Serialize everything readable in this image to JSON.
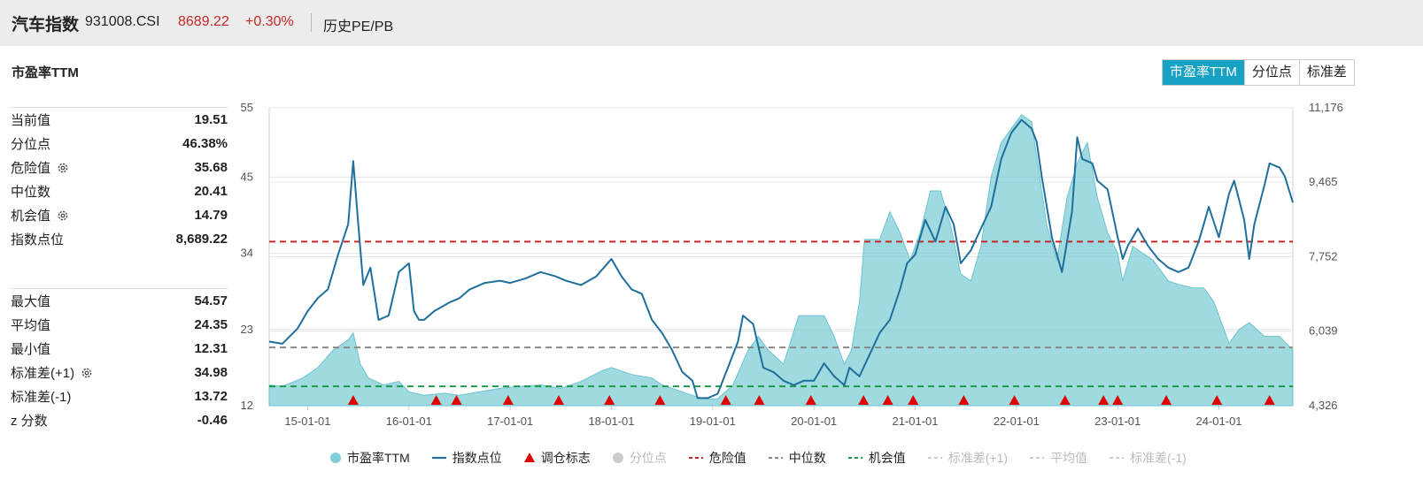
{
  "header": {
    "title": "汽车指数",
    "code": "931008.CSI",
    "price": "8689.22",
    "change": "+0.30%",
    "history_link": "历史PE/PB"
  },
  "metric_title": "市盈率TTM",
  "tabs": [
    {
      "label": "市盈率TTM",
      "active": true
    },
    {
      "label": "分位点",
      "active": false
    },
    {
      "label": "标准差",
      "active": false
    }
  ],
  "stats_top": [
    {
      "label": "当前值",
      "value": "19.51",
      "gear": false
    },
    {
      "label": "分位点",
      "value": "46.38%",
      "gear": false
    },
    {
      "label": "危险值",
      "value": "35.68",
      "gear": true
    },
    {
      "label": "中位数",
      "value": "20.41",
      "gear": false
    },
    {
      "label": "机会值",
      "value": "14.79",
      "gear": true
    },
    {
      "label": "指数点位",
      "value": "8,689.22",
      "gear": false
    }
  ],
  "stats_bottom": [
    {
      "label": "最大值",
      "value": "54.57",
      "gear": false
    },
    {
      "label": "平均值",
      "value": "24.35",
      "gear": false
    },
    {
      "label": "最小值",
      "value": "12.31",
      "gear": false
    },
    {
      "label": "标准差(+1)",
      "value": "34.98",
      "gear": true
    },
    {
      "label": "标准差(-1)",
      "value": "13.72",
      "gear": false
    },
    {
      "label": "z 分数",
      "value": "-0.46",
      "gear": false
    }
  ],
  "legend": [
    {
      "label": "市盈率TTM",
      "symbol": "circle",
      "color": "#7fcdd6",
      "dim": false
    },
    {
      "label": "指数点位",
      "symbol": "line",
      "color": "#1f6f9c",
      "dim": false
    },
    {
      "label": "调仓标志",
      "symbol": "triangle",
      "color": "#e00000",
      "dim": false
    },
    {
      "label": "分位点",
      "symbol": "circle",
      "color": "#cccccc",
      "dim": true
    },
    {
      "label": "危险值",
      "symbol": "dash",
      "color": "#c62828",
      "dim": false
    },
    {
      "label": "中位数",
      "symbol": "dash",
      "color": "#888888",
      "dim": false
    },
    {
      "label": "机会值",
      "symbol": "dash",
      "color": "#1a9a4a",
      "dim": false
    },
    {
      "label": "标准差(+1)",
      "symbol": "dash",
      "color": "#cccccc",
      "dim": true
    },
    {
      "label": "平均值",
      "symbol": "dash",
      "color": "#cccccc",
      "dim": true
    },
    {
      "label": "标准差(-1)",
      "symbol": "dash",
      "color": "#cccccc",
      "dim": true
    }
  ],
  "chart_data": {
    "type": "area",
    "x_ticks": [
      "15-01-01",
      "16-01-01",
      "17-01-01",
      "18-01-01",
      "19-01-01",
      "20-01-01",
      "21-01-01",
      "22-01-01",
      "23-01-01",
      "24-01-01"
    ],
    "x_range": [
      2014.62,
      2024.73
    ],
    "left_axis": {
      "ticks": [
        "55",
        "45",
        "34",
        "23",
        "12"
      ],
      "tick_values": [
        55,
        45,
        34,
        23,
        12
      ],
      "ylim": [
        12,
        55
      ]
    },
    "right_axis": {
      "ticks": [
        "11,176",
        "9,465",
        "7,752",
        "6,039",
        "4,326"
      ],
      "tick_values": [
        11176,
        9465,
        7752,
        6039,
        4326
      ],
      "ylim": [
        4326,
        11176
      ]
    },
    "ref_lines": [
      {
        "name": "危险值",
        "value": 35.68,
        "color": "#c62828"
      },
      {
        "name": "中位数",
        "value": 20.41,
        "color": "#888888"
      },
      {
        "name": "机会值",
        "value": 14.79,
        "color": "#1a9a4a"
      }
    ],
    "series": [
      {
        "name": "市盈率TTM",
        "axis": "left",
        "style": "area",
        "color": "#7fcdd6",
        "points": [
          [
            2014.62,
            15
          ],
          [
            2014.75,
            14.8
          ],
          [
            2014.95,
            16
          ],
          [
            2015.1,
            17.5
          ],
          [
            2015.25,
            20
          ],
          [
            2015.4,
            21.5
          ],
          [
            2015.45,
            22.5
          ],
          [
            2015.52,
            18
          ],
          [
            2015.6,
            16
          ],
          [
            2015.75,
            15
          ],
          [
            2015.9,
            15.5
          ],
          [
            2016.0,
            14
          ],
          [
            2016.15,
            13.5
          ],
          [
            2016.35,
            13.8
          ],
          [
            2016.5,
            13.5
          ],
          [
            2016.7,
            14
          ],
          [
            2016.9,
            14.5
          ],
          [
            2017.1,
            14.8
          ],
          [
            2017.3,
            15
          ],
          [
            2017.5,
            14.5
          ],
          [
            2017.7,
            15.5
          ],
          [
            2017.9,
            17
          ],
          [
            2018.0,
            17.5
          ],
          [
            2018.2,
            16.5
          ],
          [
            2018.4,
            16
          ],
          [
            2018.5,
            15
          ],
          [
            2018.7,
            14
          ],
          [
            2018.9,
            13
          ],
          [
            2019.05,
            13
          ],
          [
            2019.2,
            15
          ],
          [
            2019.35,
            20
          ],
          [
            2019.45,
            22
          ],
          [
            2019.55,
            20
          ],
          [
            2019.7,
            18
          ],
          [
            2019.85,
            25
          ],
          [
            2019.95,
            25
          ],
          [
            2020.1,
            25
          ],
          [
            2020.2,
            22
          ],
          [
            2020.3,
            18
          ],
          [
            2020.37,
            20
          ],
          [
            2020.45,
            27
          ],
          [
            2020.5,
            36
          ],
          [
            2020.65,
            36
          ],
          [
            2020.75,
            40
          ],
          [
            2020.85,
            37
          ],
          [
            2020.95,
            33
          ],
          [
            2021.05,
            37
          ],
          [
            2021.15,
            43
          ],
          [
            2021.25,
            43
          ],
          [
            2021.35,
            38
          ],
          [
            2021.45,
            31
          ],
          [
            2021.55,
            30
          ],
          [
            2021.65,
            35
          ],
          [
            2021.75,
            45
          ],
          [
            2021.85,
            50
          ],
          [
            2021.95,
            52
          ],
          [
            2022.05,
            54
          ],
          [
            2022.15,
            53
          ],
          [
            2022.3,
            38
          ],
          [
            2022.4,
            33
          ],
          [
            2022.5,
            42
          ],
          [
            2022.6,
            47
          ],
          [
            2022.7,
            50
          ],
          [
            2022.8,
            42
          ],
          [
            2022.9,
            37
          ],
          [
            2023.0,
            34
          ],
          [
            2023.05,
            30
          ],
          [
            2023.15,
            35
          ],
          [
            2023.25,
            34
          ],
          [
            2023.35,
            33
          ],
          [
            2023.5,
            30
          ],
          [
            2023.6,
            29.5
          ],
          [
            2023.75,
            29
          ],
          [
            2023.85,
            29
          ],
          [
            2023.95,
            27
          ],
          [
            2024.0,
            25
          ],
          [
            2024.1,
            21
          ],
          [
            2024.2,
            23
          ],
          [
            2024.3,
            24
          ],
          [
            2024.45,
            22
          ],
          [
            2024.6,
            22
          ],
          [
            2024.73,
            20
          ]
        ]
      },
      {
        "name": "指数点位",
        "axis": "right",
        "style": "line",
        "color": "#1f6f9c",
        "points": [
          [
            2014.62,
            5800
          ],
          [
            2014.75,
            5750
          ],
          [
            2014.9,
            6100
          ],
          [
            2015.0,
            6500
          ],
          [
            2015.1,
            6800
          ],
          [
            2015.2,
            7000
          ],
          [
            2015.3,
            7800
          ],
          [
            2015.4,
            8500
          ],
          [
            2015.45,
            9950
          ],
          [
            2015.5,
            8500
          ],
          [
            2015.55,
            7100
          ],
          [
            2015.62,
            7500
          ],
          [
            2015.7,
            6300
          ],
          [
            2015.8,
            6400
          ],
          [
            2015.9,
            7400
          ],
          [
            2016.0,
            7600
          ],
          [
            2016.05,
            6500
          ],
          [
            2016.1,
            6300
          ],
          [
            2016.15,
            6300
          ],
          [
            2016.25,
            6500
          ],
          [
            2016.4,
            6700
          ],
          [
            2016.5,
            6800
          ],
          [
            2016.6,
            7000
          ],
          [
            2016.75,
            7150
          ],
          [
            2016.9,
            7200
          ],
          [
            2017.0,
            7150
          ],
          [
            2017.15,
            7250
          ],
          [
            2017.3,
            7400
          ],
          [
            2017.45,
            7300
          ],
          [
            2017.55,
            7200
          ],
          [
            2017.7,
            7100
          ],
          [
            2017.85,
            7300
          ],
          [
            2018.0,
            7700
          ],
          [
            2018.1,
            7300
          ],
          [
            2018.2,
            7000
          ],
          [
            2018.3,
            6900
          ],
          [
            2018.4,
            6300
          ],
          [
            2018.5,
            6000
          ],
          [
            2018.6,
            5600
          ],
          [
            2018.7,
            5100
          ],
          [
            2018.8,
            4900
          ],
          [
            2018.85,
            4500
          ],
          [
            2018.95,
            4500
          ],
          [
            2019.05,
            4600
          ],
          [
            2019.15,
            5200
          ],
          [
            2019.25,
            5800
          ],
          [
            2019.3,
            6400
          ],
          [
            2019.4,
            6200
          ],
          [
            2019.5,
            5200
          ],
          [
            2019.6,
            5100
          ],
          [
            2019.7,
            4900
          ],
          [
            2019.8,
            4800
          ],
          [
            2019.9,
            4900
          ],
          [
            2020.0,
            4900
          ],
          [
            2020.1,
            5300
          ],
          [
            2020.2,
            5000
          ],
          [
            2020.3,
            4800
          ],
          [
            2020.35,
            5200
          ],
          [
            2020.45,
            5000
          ],
          [
            2020.55,
            5500
          ],
          [
            2020.65,
            6000
          ],
          [
            2020.75,
            6300
          ],
          [
            2020.85,
            7000
          ],
          [
            2020.92,
            7600
          ],
          [
            2021.0,
            7800
          ],
          [
            2021.1,
            8600
          ],
          [
            2021.2,
            8100
          ],
          [
            2021.3,
            8900
          ],
          [
            2021.38,
            8500
          ],
          [
            2021.45,
            7600
          ],
          [
            2021.55,
            7900
          ],
          [
            2021.65,
            8400
          ],
          [
            2021.75,
            8900
          ],
          [
            2021.85,
            10000
          ],
          [
            2021.95,
            10600
          ],
          [
            2022.05,
            10900
          ],
          [
            2022.15,
            10700
          ],
          [
            2022.2,
            10400
          ],
          [
            2022.25,
            9600
          ],
          [
            2022.35,
            8200
          ],
          [
            2022.45,
            7400
          ],
          [
            2022.55,
            8800
          ],
          [
            2022.6,
            10500
          ],
          [
            2022.65,
            10000
          ],
          [
            2022.75,
            9900
          ],
          [
            2022.8,
            9500
          ],
          [
            2022.9,
            9300
          ],
          [
            2023.0,
            8200
          ],
          [
            2023.05,
            7700
          ],
          [
            2023.1,
            8000
          ],
          [
            2023.2,
            8400
          ],
          [
            2023.3,
            8000
          ],
          [
            2023.4,
            7700
          ],
          [
            2023.5,
            7500
          ],
          [
            2023.6,
            7400
          ],
          [
            2023.7,
            7500
          ],
          [
            2023.8,
            8100
          ],
          [
            2023.9,
            8900
          ],
          [
            2024.0,
            8200
          ],
          [
            2024.1,
            9200
          ],
          [
            2024.15,
            9500
          ],
          [
            2024.25,
            8600
          ],
          [
            2024.3,
            7700
          ],
          [
            2024.35,
            8500
          ],
          [
            2024.45,
            9400
          ],
          [
            2024.5,
            9900
          ],
          [
            2024.6,
            9800
          ],
          [
            2024.65,
            9600
          ],
          [
            2024.73,
            9000
          ]
        ]
      }
    ],
    "rebalance_markers": [
      2015.45,
      2016.27,
      2016.47,
      2016.98,
      2017.48,
      2017.98,
      2018.48,
      2019.13,
      2019.46,
      2019.97,
      2020.49,
      2020.73,
      2020.98,
      2021.48,
      2021.98,
      2022.48,
      2022.86,
      2023.0,
      2023.48,
      2023.98,
      2024.5
    ]
  }
}
